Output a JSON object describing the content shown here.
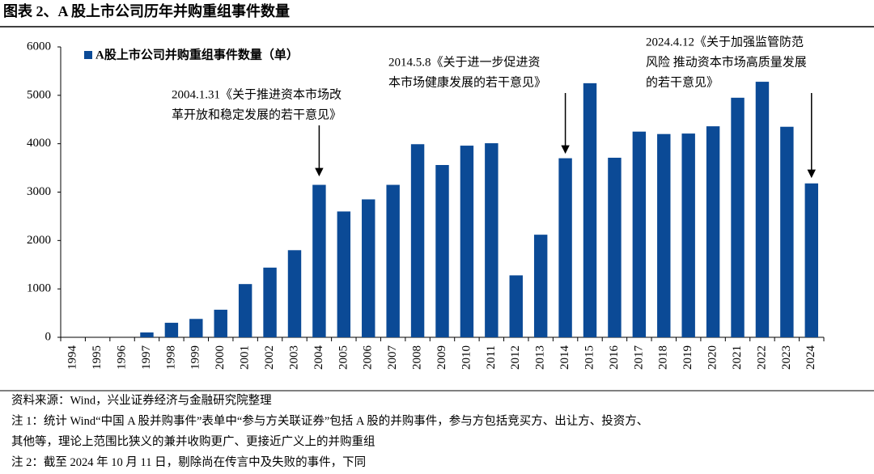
{
  "chart_data": {
    "type": "bar",
    "title": "图表 2、A 股上市公司历年并购重组事件数量",
    "series": [
      {
        "name": "A股上市公司并购重组事件数量（单）",
        "color": "#0b4a96",
        "values": [
          0,
          0,
          0,
          100,
          300,
          380,
          570,
          1100,
          1440,
          1800,
          3150,
          2600,
          2850,
          3150,
          3990,
          3560,
          3960,
          4010,
          1280,
          2120,
          3700,
          5250,
          3710,
          4250,
          4200,
          4210,
          4360,
          4950,
          5280,
          4350,
          3180
        ]
      }
    ],
    "categories": [
      "1994",
      "1995",
      "1996",
      "1997",
      "1998",
      "1999",
      "2000",
      "2001",
      "2002",
      "2003",
      "2004",
      "2005",
      "2006",
      "2007",
      "2008",
      "2009",
      "2010",
      "2011",
      "2012",
      "2013",
      "2014",
      "2015",
      "2016",
      "2017",
      "2018",
      "2019",
      "2020",
      "2021",
      "2022",
      "2023",
      "2024"
    ],
    "ylim": [
      0,
      6000
    ],
    "yticks": [
      0,
      1000,
      2000,
      3000,
      4000,
      5000,
      6000
    ],
    "grid": false,
    "legend": "top-left",
    "annotations": [
      [
        "2004.1.31《关于推进资本市场改",
        "革开放和稳定发展的若干意见》"
      ],
      [
        "2014.5.8《关于进一步促进资",
        "本市场健康发展的若干意见》"
      ],
      [
        "2024.4.12《关于加强监管防范",
        "风险 推动资本市场高质量发展",
        "的若干意见》"
      ]
    ],
    "notes": [
      "资料来源：Wind，兴业证券经济与金融研究院整理",
      "注 1：统计 Wind“中国 A 股并购事件”表单中“参与方关联证券”包括 A 股的并购事件，参与方包括竞买方、出让方、投资方、",
      "其他等，理论上范围比狭义的兼并收购更广、更接近广义上的并购重组",
      "注 2：截至 2024 年 10 月 11 日，剔除尚在传言中及失败的事件，下同"
    ]
  }
}
